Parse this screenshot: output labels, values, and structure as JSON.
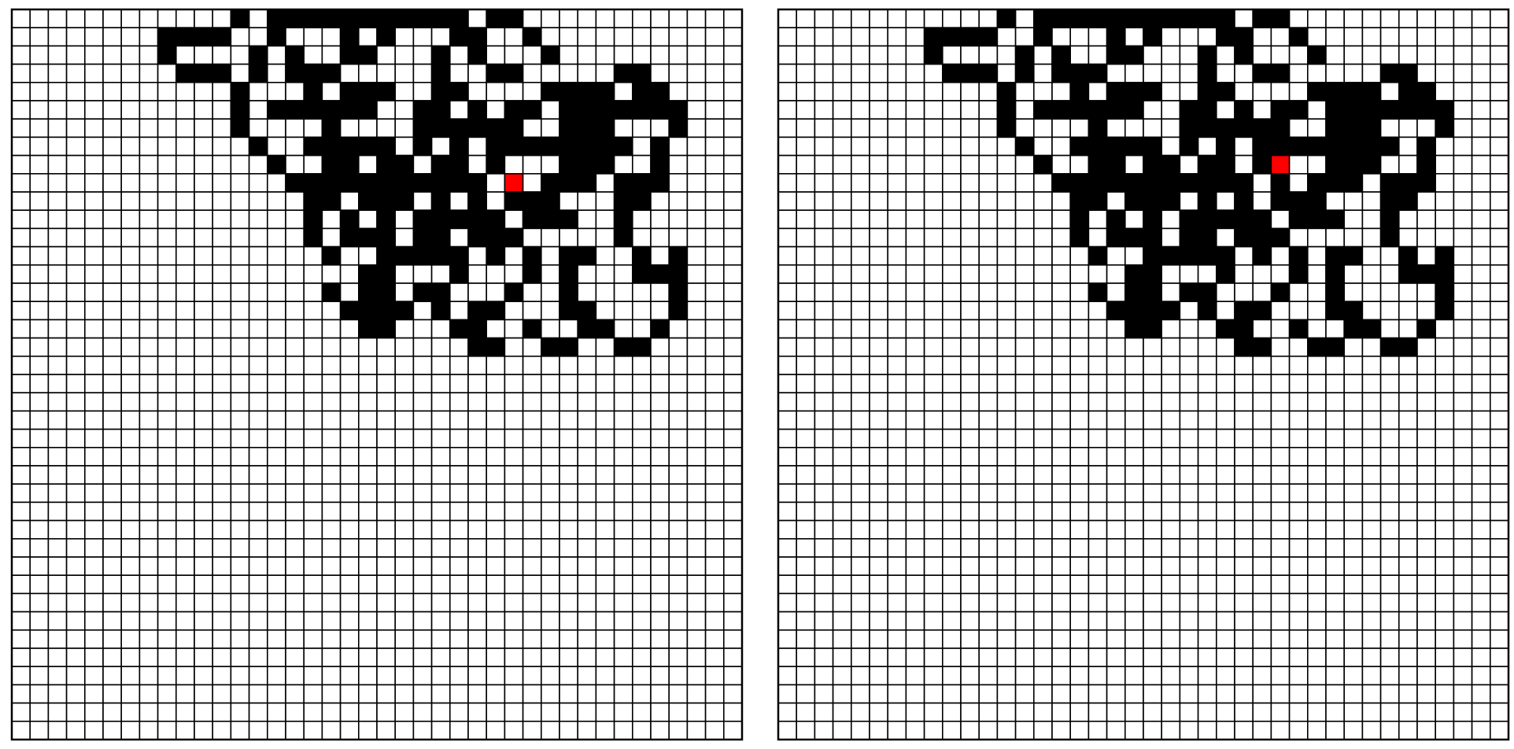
{
  "grids": [
    {
      "size": 40,
      "ant": [
        9,
        27
      ],
      "black": [
        [
          12,
          14,
          15,
          16,
          17,
          18,
          19,
          20,
          21,
          22,
          23,
          24,
          26,
          27
        ],
        [
          8,
          9,
          10,
          11,
          14,
          18,
          20,
          24,
          25,
          28
        ],
        [
          8,
          13,
          15,
          18,
          19,
          23,
          25,
          29
        ],
        [
          9,
          10,
          11,
          13,
          15,
          16,
          17,
          23,
          26,
          27,
          33,
          34
        ],
        [
          12,
          16,
          18,
          19,
          20,
          23,
          24,
          29,
          30,
          31,
          32,
          34,
          35
        ],
        [
          12,
          14,
          15,
          16,
          17,
          18,
          19,
          22,
          23,
          25,
          27,
          28,
          30,
          31,
          32,
          33,
          34,
          35,
          36
        ],
        [
          12,
          17,
          22,
          23,
          24,
          25,
          26,
          27,
          30,
          31,
          32,
          36
        ],
        [
          13,
          16,
          17,
          18,
          19,
          20,
          22,
          24,
          26,
          27,
          28,
          29,
          30,
          31,
          32,
          33,
          35
        ],
        [
          14,
          17,
          18,
          20,
          21,
          23,
          24,
          26,
          30,
          31,
          32,
          35
        ],
        [
          15,
          16,
          17,
          18,
          19,
          20,
          21,
          22,
          23,
          24,
          25,
          29,
          30,
          31,
          33,
          34,
          35
        ],
        [
          16,
          17,
          19,
          20,
          21,
          23,
          25,
          27,
          28,
          29,
          33,
          34
        ],
        [
          16,
          18,
          20,
          22,
          23,
          24,
          25,
          26,
          28,
          29,
          30,
          33
        ],
        [
          16,
          18,
          19,
          20,
          22,
          23,
          25,
          26,
          27,
          33
        ],
        [
          17,
          20,
          21,
          22,
          23,
          24,
          26,
          28,
          30,
          31,
          34,
          36
        ],
        [
          19,
          20,
          24,
          28,
          30,
          34,
          35,
          36
        ],
        [
          17,
          19,
          20,
          22,
          23,
          27,
          30,
          36
        ],
        [
          18,
          19,
          20,
          21,
          23,
          25,
          26,
          30,
          31,
          36
        ],
        [
          19,
          20,
          24,
          25,
          28,
          31,
          32,
          35
        ],
        [
          25,
          26,
          29,
          30,
          33,
          34
        ]
      ]
    },
    {
      "size": 40,
      "ant": [
        8,
        27
      ],
      "black": [
        [
          12,
          14,
          15,
          16,
          17,
          18,
          19,
          20,
          21,
          22,
          23,
          24,
          26,
          27
        ],
        [
          8,
          9,
          10,
          11,
          14,
          18,
          20,
          24,
          25,
          28
        ],
        [
          8,
          13,
          15,
          18,
          19,
          23,
          25,
          29
        ],
        [
          9,
          10,
          11,
          13,
          15,
          16,
          17,
          23,
          26,
          27,
          33,
          34
        ],
        [
          12,
          16,
          18,
          19,
          20,
          23,
          24,
          29,
          30,
          31,
          32,
          34,
          35
        ],
        [
          12,
          14,
          15,
          16,
          17,
          18,
          19,
          22,
          23,
          25,
          27,
          28,
          30,
          31,
          32,
          33,
          34,
          35,
          36
        ],
        [
          12,
          17,
          22,
          23,
          24,
          25,
          26,
          27,
          30,
          31,
          32,
          36
        ],
        [
          13,
          16,
          17,
          18,
          19,
          20,
          22,
          24,
          26,
          27,
          28,
          29,
          30,
          31,
          32,
          33,
          35
        ],
        [
          14,
          17,
          18,
          20,
          21,
          23,
          24,
          26,
          30,
          31,
          32,
          35
        ],
        [
          15,
          16,
          17,
          18,
          19,
          20,
          21,
          22,
          23,
          24,
          25,
          27,
          29,
          30,
          31,
          33,
          34,
          35
        ],
        [
          16,
          17,
          19,
          20,
          21,
          23,
          25,
          27,
          28,
          29,
          33,
          34
        ],
        [
          16,
          18,
          20,
          22,
          23,
          24,
          25,
          26,
          28,
          29,
          30,
          33
        ],
        [
          16,
          18,
          19,
          20,
          22,
          23,
          25,
          26,
          27,
          33
        ],
        [
          17,
          20,
          21,
          22,
          23,
          24,
          26,
          28,
          30,
          31,
          34,
          36
        ],
        [
          19,
          20,
          24,
          28,
          30,
          34,
          35,
          36
        ],
        [
          17,
          19,
          20,
          22,
          23,
          27,
          30,
          36
        ],
        [
          18,
          19,
          20,
          21,
          23,
          25,
          26,
          30,
          31,
          36
        ],
        [
          19,
          20,
          24,
          25,
          28,
          31,
          32,
          35
        ],
        [
          25,
          26,
          29,
          30,
          33,
          34
        ]
      ]
    }
  ]
}
